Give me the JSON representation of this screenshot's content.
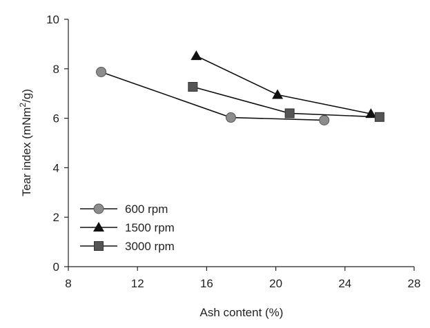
{
  "chart_data": {
    "type": "line",
    "xlabel": "Ash content (%)",
    "ylabel_main": "Tear index (mNm",
    "ylabel_sup": "2",
    "ylabel_tail": "/g)",
    "xlim": [
      8,
      28
    ],
    "ylim": [
      0,
      10
    ],
    "xticks": [
      "8",
      "12",
      "16",
      "20",
      "24",
      "28"
    ],
    "yticks": [
      "0",
      "2",
      "4",
      "6",
      "8",
      "10"
    ],
    "grid": false,
    "legend_position": "bottom-left",
    "series": [
      {
        "name": "600 rpm",
        "marker": "circle",
        "color": "#8c8c8c",
        "points": [
          [
            9.9,
            7.87
          ],
          [
            17.4,
            6.03
          ],
          [
            22.8,
            5.92
          ]
        ]
      },
      {
        "name": "1500 rpm",
        "marker": "triangle",
        "color": "#111111",
        "points": [
          [
            15.4,
            8.52
          ],
          [
            20.1,
            6.95
          ],
          [
            25.5,
            6.18
          ]
        ]
      },
      {
        "name": "3000 rpm",
        "marker": "square",
        "color": "#555555",
        "points": [
          [
            15.2,
            7.27
          ],
          [
            20.8,
            6.2
          ],
          [
            26.0,
            6.05
          ]
        ]
      }
    ]
  }
}
